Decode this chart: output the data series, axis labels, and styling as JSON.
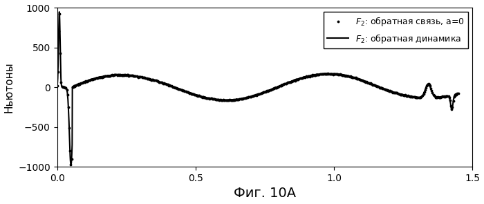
{
  "title": "",
  "xlabel": "Фиг. 10А",
  "ylabel": "Ньютоны",
  "xlim": [
    0,
    1.5
  ],
  "ylim": [
    -1000,
    1000
  ],
  "xticks": [
    0,
    0.5,
    1.0,
    1.5
  ],
  "yticks": [
    -1000,
    -500,
    0,
    500,
    1000
  ],
  "legend_labels": [
    "$F_2$: обратная связь, а=0",
    "$F_2$: обратная динамика"
  ],
  "bg_color": "#ffffff",
  "xlabel_fontsize": 14,
  "ylabel_fontsize": 11,
  "tick_fontsize": 10,
  "line_color": "#000000",
  "line_width": 1.5,
  "dot_size": 3.5
}
